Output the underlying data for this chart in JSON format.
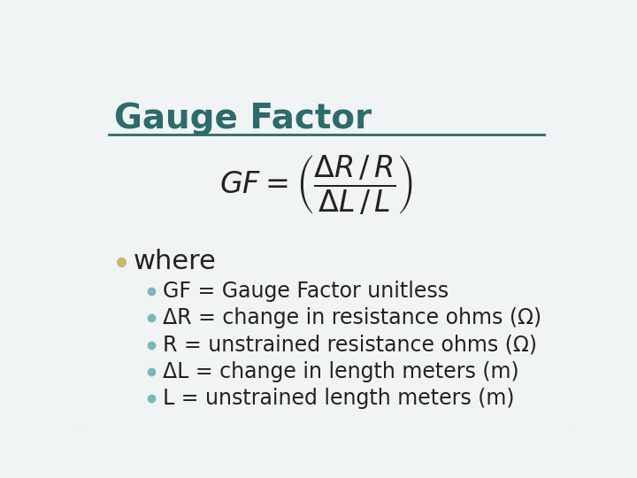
{
  "title": "Gauge Factor",
  "title_color": "#2E6B6B",
  "title_fontsize": 28,
  "background_color": "#F0F4F4",
  "border_color": "#5A8A8A",
  "line_color": "#2E6B6B",
  "bullet_l1_color": "#C8B870",
  "bullet_l2_color": "#7AB8B8",
  "where_text": "where",
  "where_fontsize": 22,
  "bullet_items": [
    "GF = Gauge Factor unitless",
    "ΔR = change in resistance ohms (Ω)",
    "R = unstrained resistance ohms (Ω)",
    "ΔL = change in length meters (m)",
    "L = unstrained length meters (m)"
  ],
  "bullet_fontsize": 17,
  "formula_fontsize": 24,
  "text_color": "#222222"
}
